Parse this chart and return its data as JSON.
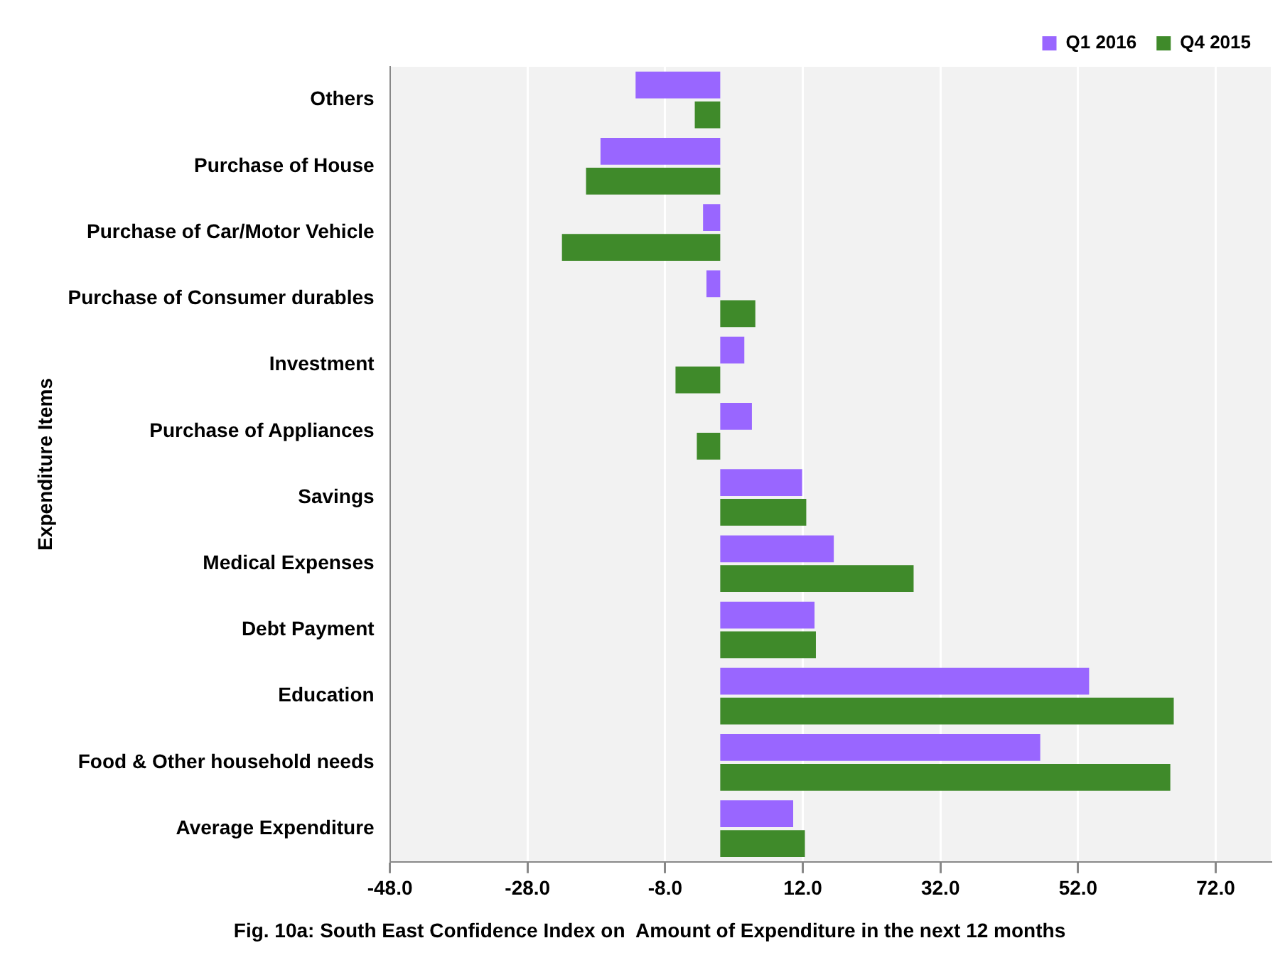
{
  "chart_data": {
    "type": "bar",
    "orientation": "horizontal",
    "title": "Fig. 10a: South East Confidence Index on  Amount of Expenditure in the next 12 months",
    "ylabel": "Expenditure Items",
    "categories": [
      "Others",
      "Purchase of House",
      "Purchase of Car/Motor Vehicle",
      "Purchase of Consumer durables",
      "Investment",
      "Purchase of Appliances",
      "Savings",
      "Medical Expenses",
      "Debt Payment",
      "Education",
      "Food & Other household needs",
      "Average Expenditure"
    ],
    "series": [
      {
        "name": "Q1 2016",
        "color": "#9966ff",
        "values": [
          -12.3,
          -17.4,
          -2.5,
          -2.0,
          3.5,
          4.6,
          11.9,
          16.5,
          13.7,
          53.6,
          46.5,
          10.6
        ]
      },
      {
        "name": "Q4 2015",
        "color": "#3f8a2a",
        "values": [
          -3.7,
          -19.5,
          -23.0,
          5.1,
          -6.5,
          -3.4,
          12.5,
          28.1,
          13.9,
          65.9,
          65.4,
          12.3
        ]
      }
    ],
    "xlim": [
      -48,
      80
    ],
    "xticks": [
      {
        "value": -48,
        "label": "-48.0"
      },
      {
        "value": -28,
        "label": "-28.0"
      },
      {
        "value": -8,
        "label": "-8.0"
      },
      {
        "value": 12,
        "label": "12.0"
      },
      {
        "value": 32,
        "label": "32.0"
      },
      {
        "value": 52,
        "label": "52.0"
      },
      {
        "value": 72,
        "label": "72.0"
      }
    ],
    "grid": "x",
    "legend": "top right"
  }
}
